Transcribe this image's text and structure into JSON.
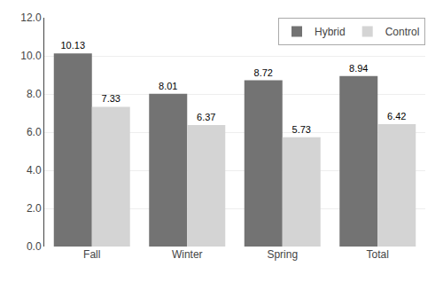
{
  "chart_data": {
    "type": "bar",
    "categories": [
      "Fall",
      "Winter",
      "Spring",
      "Total"
    ],
    "series": [
      {
        "name": "Hybrid",
        "color": "#737373",
        "values": [
          10.13,
          8.01,
          8.72,
          8.94
        ]
      },
      {
        "name": "Control",
        "color": "#d4d4d4",
        "values": [
          7.33,
          6.37,
          5.73,
          6.42
        ]
      }
    ],
    "ylim": [
      0,
      12.0
    ],
    "yticks": [
      {
        "value": 0,
        "label": "0.0"
      },
      {
        "value": 2,
        "label": "2.0"
      },
      {
        "value": 4,
        "label": "4.0"
      },
      {
        "value": 6,
        "label": "6.0"
      },
      {
        "value": 8,
        "label": "8.0"
      },
      {
        "value": 10,
        "label": "10.0"
      },
      {
        "value": 12,
        "label": "12.0"
      }
    ],
    "grid": true,
    "legend": "upper right",
    "data_labels": true
  }
}
